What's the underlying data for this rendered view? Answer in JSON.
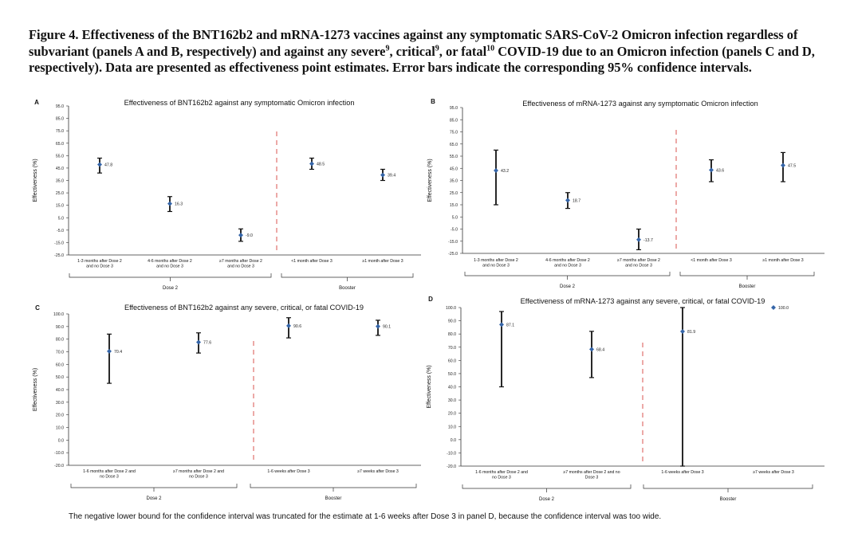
{
  "figure_title": {
    "part1": "Figure 4. Effectiveness of the BNT162b2 and mRNA-1273 vaccines against any symptomatic SARS-CoV-2 Omicron infection regardless of subvariant (panels A and B, respectively) and against any severe",
    "sup1": "9",
    "part2": ", critical",
    "sup2": "9",
    "part3": ", or fatal",
    "sup3": "10",
    "part4": " COVID-19 due to an Omicron infection (panels C and D, respectively). Data are presented as effectiveness point estimates. Error bars indicate the corresponding 95% confidence intervals."
  },
  "footnote": "The negative lower bound for the confidence interval was truncated for the estimate at 1-6 weeks after Dose 3 in panel D, because the confidence interval was too wide.",
  "colors": {
    "point": "#3565a8",
    "errorbar": "#111111",
    "divider": "#d9534f",
    "axis": "#333333"
  },
  "chart_data": [
    {
      "panel": "A",
      "type": "scatter",
      "title": "Effectiveness of BNT162b2 against any symptomatic Omicron infection",
      "ylabel": "Effectiveness (%)",
      "ylim": [
        -25,
        95
      ],
      "yticks": [
        "95.0",
        "85.0",
        "75.0",
        "65.0",
        "55.0",
        "45.0",
        "35.0",
        "25.0",
        "15.0",
        "5.0",
        "-5.0",
        "-15.0",
        "-25.0"
      ],
      "categories": [
        "1-3 months after Dose 2 and no Dose 3",
        "4-6 months after Dose 2 and no Dose 3",
        "≥7 months after Dose 2 and no Dose 3",
        "<1 month after Dose 3",
        "≥1 month after Dose 3"
      ],
      "values": [
        47.8,
        16.3,
        -9.0,
        48.5,
        39.4
      ],
      "labels": [
        "47.8",
        "16.3",
        "-9.0",
        "48.5",
        "39.4"
      ],
      "ci_low": [
        41,
        10,
        -14,
        44,
        35
      ],
      "ci_high": [
        53,
        22,
        -4,
        53,
        44
      ],
      "groups": [
        {
          "label": "Dose 2",
          "count": 3
        },
        {
          "label": "Booster",
          "count": 2
        }
      ]
    },
    {
      "panel": "B",
      "type": "scatter",
      "title": "Effectiveness of mRNA-1273 against any symptomatic Omicron infection",
      "ylabel": "Effectiveness (%)",
      "ylim": [
        -25,
        95
      ],
      "yticks": [
        "95.0",
        "85.0",
        "75.0",
        "65.0",
        "55.0",
        "45.0",
        "35.0",
        "25.0",
        "15.0",
        "5.0",
        "-5.0",
        "-15.0",
        "-25.0"
      ],
      "categories": [
        "1-3 months after Dose 2 and no Dose 3",
        "4-6 months after Dose 2 and no Dose 3",
        "≥7 months after Dose 2 and no Dose 3",
        "<1 month after Dose 3",
        "≥1 month after Dose 3"
      ],
      "values": [
        43.2,
        18.7,
        -13.7,
        43.6,
        47.5
      ],
      "labels": [
        "43.2",
        "18.7",
        "-13.7",
        "43.6",
        "47.5"
      ],
      "ci_low": [
        15,
        12,
        -22,
        34,
        34
      ],
      "ci_high": [
        60,
        25,
        -5,
        52,
        58
      ],
      "groups": [
        {
          "label": "Dose 2",
          "count": 3
        },
        {
          "label": "Booster",
          "count": 2
        }
      ]
    },
    {
      "panel": "C",
      "type": "scatter",
      "title": "Effectiveness of BNT162b2 against any severe, critical, or fatal COVID-19",
      "ylabel": "Effectiveness (%)",
      "ylim": [
        -20,
        100
      ],
      "yticks": [
        "100.0",
        "90.0",
        "80.0",
        "70.0",
        "60.0",
        "50.0",
        "40.0",
        "30.0",
        "20.0",
        "10.0",
        "0.0",
        "-10.0",
        "-20.0"
      ],
      "categories": [
        "1-6 months after Dose 2 and no Dose 3",
        "≥7 months after Dose 2 and no Dose 3",
        "1-6 weeks after Dose 3",
        "≥7 weeks after Dose 3"
      ],
      "values": [
        70.4,
        77.6,
        90.6,
        90.1
      ],
      "labels": [
        "70.4",
        "77.6",
        "90.6",
        "90.1"
      ],
      "ci_low": [
        45,
        69,
        81,
        83
      ],
      "ci_high": [
        84,
        85,
        97,
        95
      ],
      "groups": [
        {
          "label": "Dose 2",
          "count": 2
        },
        {
          "label": "Booster",
          "count": 2
        }
      ]
    },
    {
      "panel": "D",
      "type": "scatter",
      "title": "Effectiveness of mRNA-1273 against any severe, critical, or fatal COVID-19",
      "ylabel": "Effectiveness (%)",
      "ylim": [
        -20,
        100
      ],
      "yticks": [
        "100.0",
        "90.0",
        "80.0",
        "70.0",
        "60.0",
        "50.0",
        "40.0",
        "30.0",
        "20.0",
        "10.0",
        "0.0",
        "-10.0",
        "-20.0"
      ],
      "categories": [
        "1-6 months after Dose 2 and no Dose 3",
        "≥7 months after Dose 2 and no Dose 3",
        "1-6 weeks after Dose 3",
        "≥7 weeks after Dose 3"
      ],
      "values": [
        87.1,
        68.4,
        81.9,
        100.0
      ],
      "labels": [
        "87.1",
        "68.4",
        "81.9",
        "100.0"
      ],
      "ci_low": [
        40,
        47,
        -20,
        100
      ],
      "ci_high": [
        97,
        82,
        100,
        100
      ],
      "groups": [
        {
          "label": "Dose 2",
          "count": 2
        },
        {
          "label": "Booster",
          "count": 2
        }
      ]
    }
  ]
}
